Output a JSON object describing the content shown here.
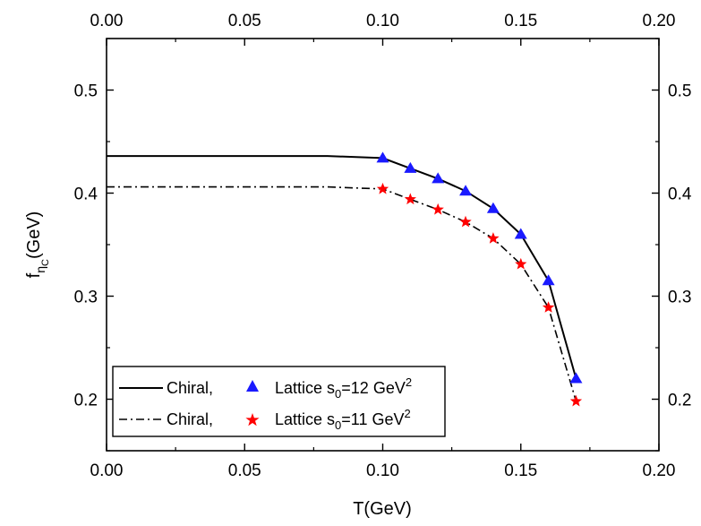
{
  "chart_data": {
    "type": "line",
    "xlabel": "T(GeV)",
    "ylabel_main": "f",
    "ylabel_sub": "η",
    "ylabel_subsub": "C",
    "ylabel_rest": "(GeV)",
    "xlim": [
      0.0,
      0.2
    ],
    "ylim": [
      0.15,
      0.55
    ],
    "x_ticks": [
      "0.00",
      "0.05",
      "0.10",
      "0.15",
      "0.20"
    ],
    "y_ticks": [
      "0.2",
      "0.3",
      "0.4",
      "0.5"
    ],
    "y_tick_values": [
      0.2,
      0.3,
      0.4,
      0.5
    ],
    "x_tick_values": [
      0.0,
      0.05,
      0.1,
      0.15,
      0.2
    ],
    "grid": false,
    "legend_position": "bottom-left",
    "series": [
      {
        "style": "solid",
        "x": [
          0.0,
          0.02,
          0.04,
          0.06,
          0.08,
          0.1,
          0.11,
          0.12,
          0.13,
          0.14,
          0.15,
          0.16,
          0.17
        ],
        "y": [
          0.436,
          0.436,
          0.436,
          0.436,
          0.436,
          0.434,
          0.424,
          0.414,
          0.402,
          0.385,
          0.36,
          0.315,
          0.22
        ],
        "color": "#000000"
      },
      {
        "style": "dashdot",
        "x": [
          0.0,
          0.02,
          0.04,
          0.06,
          0.08,
          0.1,
          0.11,
          0.12,
          0.13,
          0.14,
          0.15,
          0.16,
          0.17
        ],
        "y": [
          0.406,
          0.406,
          0.406,
          0.406,
          0.406,
          0.404,
          0.394,
          0.384,
          0.372,
          0.356,
          0.331,
          0.289,
          0.198
        ],
        "color": "#000000"
      },
      {
        "marker": "triangle",
        "x": [
          0.1,
          0.11,
          0.12,
          0.13,
          0.14,
          0.15,
          0.16,
          0.17
        ],
        "y": [
          0.434,
          0.424,
          0.414,
          0.402,
          0.385,
          0.36,
          0.315,
          0.22
        ],
        "color": "#1a1aff"
      },
      {
        "marker": "star",
        "x": [
          0.1,
          0.11,
          0.12,
          0.13,
          0.14,
          0.15,
          0.16,
          0.17
        ],
        "y": [
          0.404,
          0.394,
          0.384,
          0.372,
          0.356,
          0.331,
          0.289,
          0.198
        ],
        "color": "#ff0000"
      }
    ],
    "legend": [
      {
        "line_label": "Chiral,",
        "line_style": "solid",
        "marker": "triangle",
        "marker_color": "#1a1aff",
        "label_main": "Lattice s",
        "label_sub": "0",
        "label_mid": "=12 GeV",
        "label_sup": "2"
      },
      {
        "line_label": "Chiral,",
        "line_style": "dashdot",
        "marker": "star",
        "marker_color": "#ff0000",
        "label_main": "Lattice s",
        "label_sub": "0",
        "label_mid": "=11 GeV",
        "label_sup": "2"
      }
    ]
  }
}
